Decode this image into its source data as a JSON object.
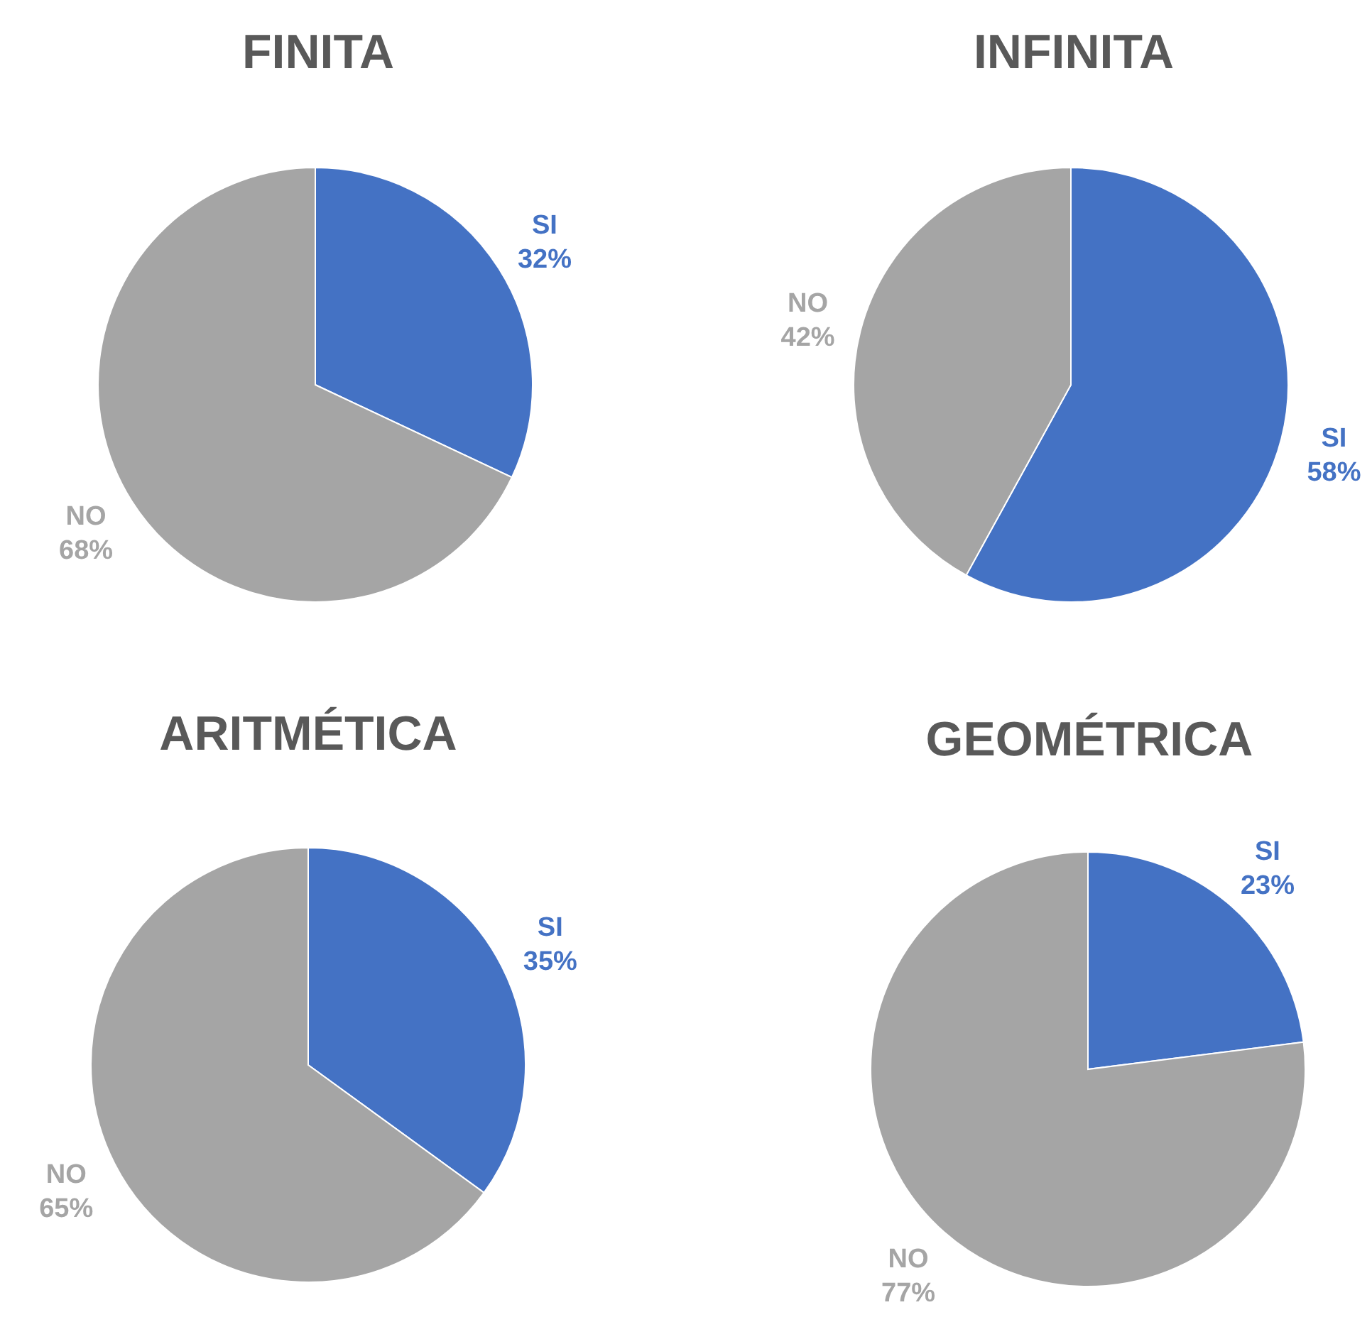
{
  "chart_data": [
    {
      "type": "pie",
      "title": "FINITA",
      "categories": [
        "SI",
        "NO"
      ],
      "values": [
        32,
        68
      ],
      "colors": [
        "#4472c4",
        "#a5a5a5"
      ],
      "value_labels": [
        "32%",
        "68%"
      ]
    },
    {
      "type": "pie",
      "title": "INFINITA",
      "categories": [
        "SI",
        "NO"
      ],
      "values": [
        58,
        42
      ],
      "colors": [
        "#4472c4",
        "#a5a5a5"
      ],
      "value_labels": [
        "58%",
        "42%"
      ]
    },
    {
      "type": "pie",
      "title": "ARITMÉTICA",
      "categories": [
        "SI",
        "NO"
      ],
      "values": [
        35,
        65
      ],
      "colors": [
        "#4472c4",
        "#a5a5a5"
      ],
      "value_labels": [
        "35%",
        "65%"
      ]
    },
    {
      "type": "pie",
      "title": "GEOMÉTRICA",
      "categories": [
        "SI",
        "NO"
      ],
      "values": [
        23,
        77
      ],
      "colors": [
        "#4472c4",
        "#a5a5a5"
      ],
      "value_labels": [
        "23%",
        "77%"
      ]
    }
  ]
}
